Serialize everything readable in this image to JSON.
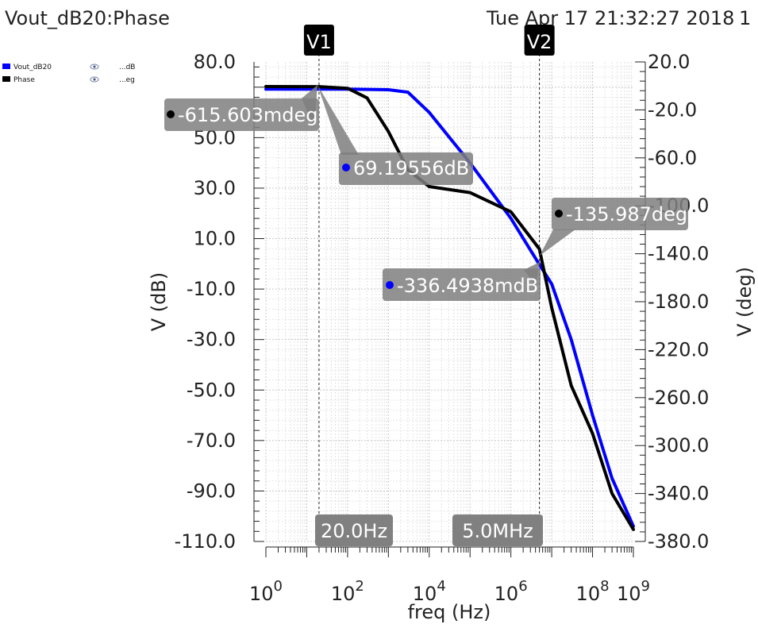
{
  "header": {
    "title": "Vout_dB20:Phase",
    "timestamp": "Tue Apr 17 21:32:27 2018",
    "page": "1"
  },
  "legend": {
    "items": [
      {
        "name": "Vout_dB20",
        "color": "#0000ff",
        "icon": "eye-icon",
        "unit": "...dB"
      },
      {
        "name": "Phase",
        "color": "#000000",
        "icon": "eye-icon",
        "unit": "...eg"
      }
    ]
  },
  "chart_data": {
    "type": "line",
    "xlabel": "freq (Hz)",
    "xscale": "log",
    "xlim": [
      1,
      1000000000
    ],
    "x_ticks": [
      {
        "base": "10",
        "exp": "0"
      },
      {
        "base": "10",
        "exp": "2"
      },
      {
        "base": "10",
        "exp": "4"
      },
      {
        "base": "10",
        "exp": "6"
      },
      {
        "base": "10",
        "exp": "8"
      },
      {
        "base": "10",
        "exp": "9"
      }
    ],
    "ylabel_left": "V (dB)",
    "ylim_left": [
      -110,
      80
    ],
    "yticks_left": [
      "80.0",
      "50.0",
      "30.0",
      "10.0",
      "-10.0",
      "-30.0",
      "-50.0",
      "-70.0",
      "-90.0",
      "-110.0"
    ],
    "ylabel_right": "V (deg)",
    "ylim_right": [
      -380,
      20
    ],
    "yticks_right": [
      "20.0",
      "-20.0",
      "-60.0",
      "-100.0",
      "-140.0",
      "-180.0",
      "-220.0",
      "-260.0",
      "-300.0",
      "-340.0",
      "-380.0"
    ],
    "grid": true,
    "series": [
      {
        "name": "Vout_dB20",
        "axis": "left",
        "color": "#0000ff",
        "x": [
          1,
          10,
          100,
          1000,
          3000,
          10000,
          100000,
          1000000,
          5000000,
          10000000,
          30000000,
          100000000,
          300000000,
          1000000000
        ],
        "y": [
          69.2,
          69.2,
          69.2,
          69,
          68,
          60,
          40,
          18,
          -0.3,
          -8,
          -30,
          -60,
          -85,
          -104
        ]
      },
      {
        "name": "Phase",
        "axis": "right",
        "color": "#000000",
        "x": [
          1,
          10,
          20,
          100,
          300,
          1000,
          3000,
          10000,
          100000,
          1000000,
          5000000,
          10000000,
          30000000,
          100000000,
          300000000,
          1000000000
        ],
        "y": [
          -0.5,
          -0.6,
          -0.6,
          -2,
          -10,
          -38,
          -70,
          -84,
          -89,
          -105,
          -136,
          -185,
          -250,
          -290,
          -340,
          -370
        ]
      }
    ]
  },
  "markers": {
    "vertical": [
      {
        "title": "V1",
        "label": "20.0Hz",
        "x": 20
      },
      {
        "title": "V2",
        "label": "5.0MHz",
        "x": 5000000
      }
    ],
    "points": [
      {
        "label": "-615.603mdeg",
        "x": 20,
        "y": -0.615603,
        "axis": "right",
        "color": "#000000"
      },
      {
        "label": "69.19556dB",
        "x": 20,
        "y": 69.19556,
        "axis": "left",
        "color": "#0000ff"
      },
      {
        "label": "-135.987deg",
        "x": 5000000,
        "y": -135.987,
        "axis": "right",
        "color": "#000000"
      },
      {
        "label": "-336.4938mdB",
        "x": 5000000,
        "y": -0.3364938,
        "axis": "left",
        "color": "#0000ff"
      }
    ]
  }
}
